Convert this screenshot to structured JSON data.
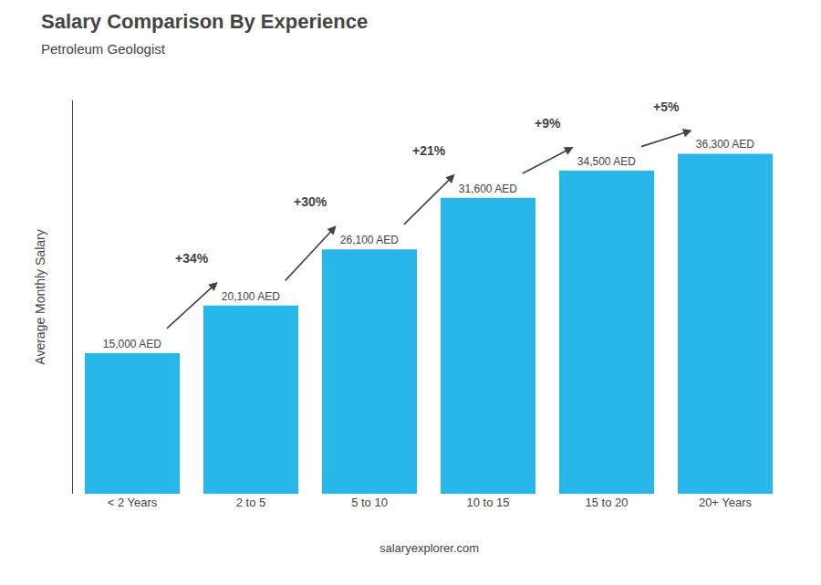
{
  "chart_data": {
    "type": "bar",
    "title": "Salary Comparison By Experience",
    "subtitle": "Petroleum Geologist",
    "categories": [
      "< 2 Years",
      "2 to 5",
      "5 to 10",
      "10 to 15",
      "15 to 20",
      "20+ Years"
    ],
    "values": [
      15000,
      20100,
      26100,
      31600,
      34500,
      36300
    ],
    "value_labels": [
      "15,000 AED",
      "20,100 AED",
      "26,100 AED",
      "31,600 AED",
      "34,500 AED",
      "36,300 AED"
    ],
    "data_labels": true,
    "color": "#29b6e8",
    "ylabel": "Average Monthly Salary",
    "ylim": [
      0,
      42000
    ],
    "tick_labels": "x",
    "grid": false,
    "annotations": [
      "+34%",
      "+30%",
      "+21%",
      "+9%",
      "+5%"
    ],
    "footer": "salaryexplorer.com"
  }
}
